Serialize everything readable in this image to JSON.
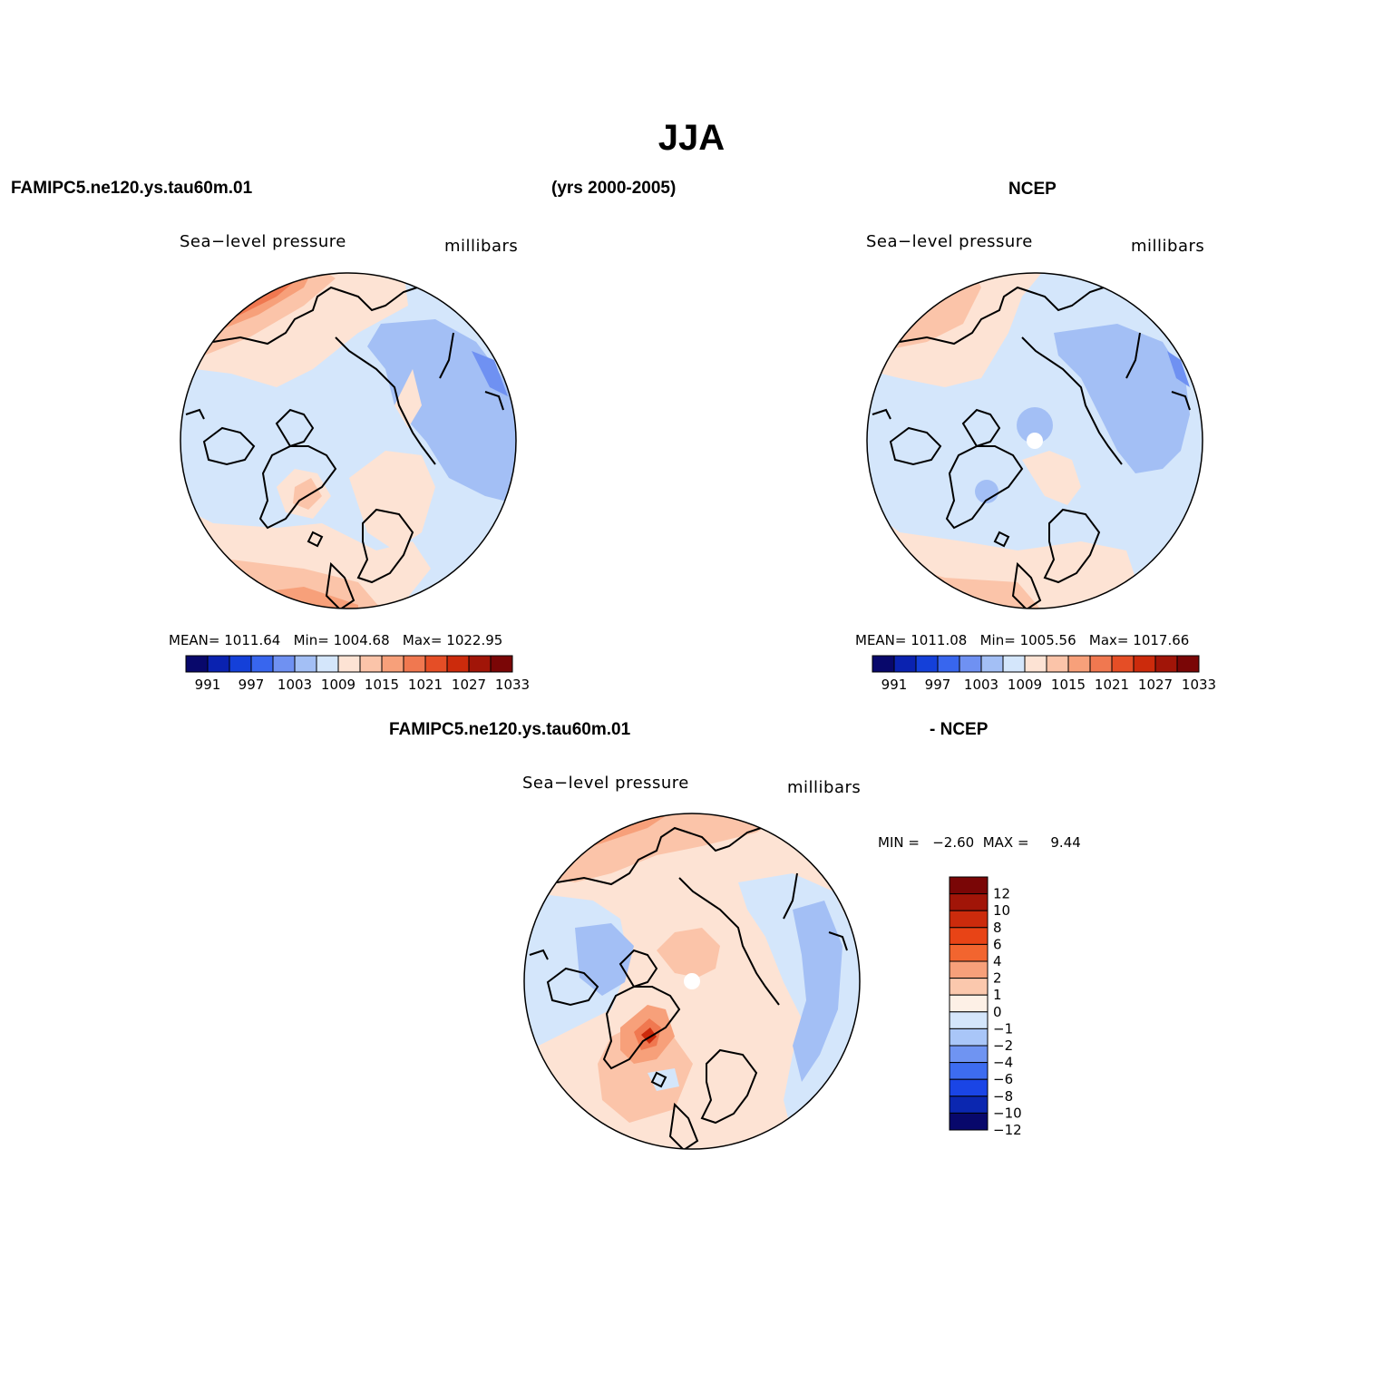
{
  "figure": {
    "title": "JJA",
    "model_case": "FAMIPC5.ne120.ys.tau60m.01",
    "years": "(yrs 2000-2005)",
    "obs_name": "NCEP",
    "diff_left": "FAMIPC5.ne120.ys.tau60m.01",
    "diff_right": "- NCEP"
  },
  "panels": {
    "model": {
      "variable": "Sea−level pressure",
      "units": "millibars",
      "mean_label": "MEAN=",
      "mean": "1011.64",
      "min_label": "Min=",
      "min": "1004.68",
      "max_label": "Max=",
      "max": "1022.95"
    },
    "obs": {
      "variable": "Sea−level pressure",
      "units": "millibars",
      "mean_label": "MEAN=",
      "mean": "1011.08",
      "min_label": "Min=",
      "min": "1005.56",
      "max_label": "Max=",
      "max": "1017.66"
    },
    "diff": {
      "variable": "Sea−level pressure",
      "units": "millibars",
      "minmax_text": "MIN =   −2.60  MAX =     9.44"
    }
  },
  "colorbar_abs": {
    "colors": [
      "#08086b",
      "#0a22b0",
      "#1440d9",
      "#3866ee",
      "#6f91f2",
      "#a3bff5",
      "#d4e6fb",
      "#fde3d4",
      "#fbc4a9",
      "#f7a07a",
      "#f07850",
      "#e54e26",
      "#cc2b0c",
      "#a11508",
      "#7a0606"
    ],
    "labels": [
      "991",
      "997",
      "1003",
      "1009",
      "1015",
      "1021",
      "1027",
      "1033"
    ]
  },
  "colorbar_diff": {
    "colors_top_to_bottom": [
      "#7a0606",
      "#a11508",
      "#cc2b0c",
      "#e84416",
      "#f2652f",
      "#f7a07a",
      "#fbc8ad",
      "#fdf0e6",
      "#d4e6fb",
      "#a9c6f8",
      "#6f94f2",
      "#3d6cf0",
      "#1a45e6",
      "#0b27b0",
      "#08086b"
    ],
    "labels": [
      "12",
      "10",
      "8",
      "6",
      "4",
      "2",
      "1",
      "0",
      "−1",
      "−2",
      "−4",
      "−6",
      "−8",
      "−10",
      "−12"
    ]
  }
}
